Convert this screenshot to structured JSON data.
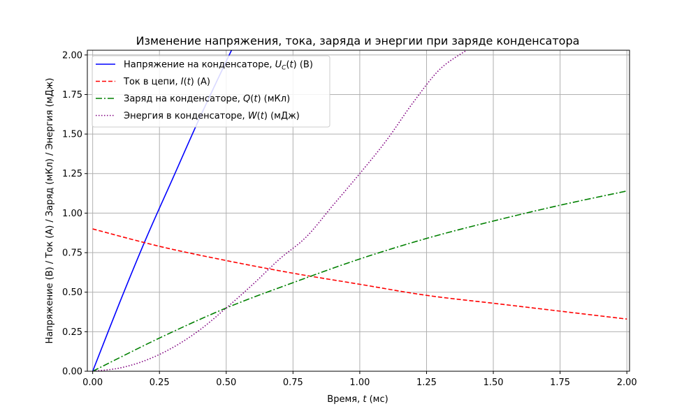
{
  "chart_data": {
    "type": "line",
    "title": "Изменение напряжения, тока, заряда и энергии при заряде конденсатора",
    "xlabel": {
      "pre": "Время, ",
      "var": "t",
      "post": " (мс)"
    },
    "ylabel": "Напряжение (В) / Ток (А) / Заряд (мКл) / Энергия (мДж)",
    "xlim": [
      -0.02,
      2.01
    ],
    "ylim": [
      0,
      2.03
    ],
    "xticks": [
      0.0,
      0.25,
      0.5,
      0.75,
      1.0,
      1.25,
      1.5,
      1.75,
      2.0
    ],
    "xtick_labels": [
      "0.00",
      "0.25",
      "0.50",
      "0.75",
      "1.00",
      "1.25",
      "1.50",
      "1.75",
      "2.00"
    ],
    "yticks": [
      0.0,
      0.25,
      0.5,
      0.75,
      1.0,
      1.25,
      1.5,
      1.75,
      2.0
    ],
    "ytick_labels": [
      "0.00",
      "0.25",
      "0.50",
      "0.75",
      "1.00",
      "1.25",
      "1.50",
      "1.75",
      "2.00"
    ],
    "grid": true,
    "legend_position": "upper-left",
    "series": [
      {
        "name": "Напряжение на конденсаторе, U_C(t) (В)",
        "legend": {
          "pre": "Напряжение на конденсаторе, ",
          "var": "U",
          "sub": "C",
          "mid": "(t)",
          "post": " (В)"
        },
        "color": "#0000ff",
        "style": "solid",
        "x": [
          0.0,
          0.1,
          0.2,
          0.3,
          0.4,
          0.5,
          0.52
        ],
        "y": [
          0.0,
          0.43,
          0.84,
          1.22,
          1.6,
          1.96,
          2.03
        ]
      },
      {
        "name": "Ток в цепи, I(t) (А)",
        "legend": {
          "pre": "Ток в цепи, ",
          "var": "I",
          "sub": "",
          "mid": "(t)",
          "post": " (А)"
        },
        "color": "#ff0000",
        "style": "dashed",
        "x": [
          0.0,
          0.25,
          0.5,
          0.75,
          1.0,
          1.25,
          1.5,
          1.75,
          2.0
        ],
        "y": [
          0.9,
          0.79,
          0.7,
          0.62,
          0.55,
          0.48,
          0.43,
          0.38,
          0.33
        ]
      },
      {
        "name": "Заряд на конденсаторе, Q(t) (мКл)",
        "legend": {
          "pre": "Заряд на конденсаторе, ",
          "var": "Q",
          "sub": "",
          "mid": "(t)",
          "post": " (мКл)"
        },
        "color": "#008000",
        "style": "dashdot",
        "x": [
          0.0,
          0.25,
          0.5,
          0.75,
          1.0,
          1.25,
          1.5,
          1.75,
          2.0
        ],
        "y": [
          0.0,
          0.21,
          0.4,
          0.56,
          0.71,
          0.84,
          0.95,
          1.05,
          1.14
        ]
      },
      {
        "name": "Энергия в конденсаторе, W(t) (мДж)",
        "legend": {
          "pre": "Энергия в конденсаторе, ",
          "var": "W",
          "sub": "",
          "mid": "(t)",
          "post": " (мДж)"
        },
        "color": "#800080",
        "style": "dotted",
        "x": [
          0.0,
          0.1,
          0.2,
          0.3,
          0.4,
          0.5,
          0.6,
          0.7,
          0.8,
          0.9,
          1.0,
          1.1,
          1.2,
          1.3,
          1.4
        ],
        "y": [
          0.0,
          0.02,
          0.07,
          0.15,
          0.26,
          0.4,
          0.55,
          0.71,
          0.85,
          1.05,
          1.25,
          1.46,
          1.7,
          1.91,
          2.03
        ]
      }
    ]
  }
}
